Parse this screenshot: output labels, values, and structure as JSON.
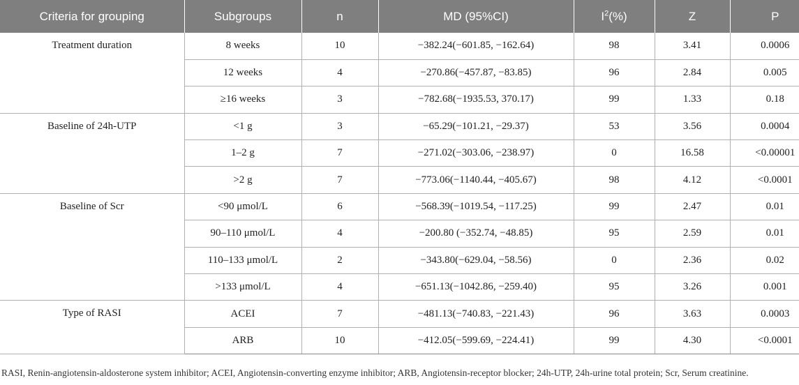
{
  "table": {
    "headers": {
      "criteria": "Criteria for grouping",
      "subgroups": "Subgroups",
      "n": "n",
      "md": "MD (95%CI)",
      "i2_prefix": "I",
      "i2_sup": "2",
      "i2_suffix": "(%)",
      "z": "Z",
      "p": "P"
    },
    "groups": [
      {
        "criteria": "Treatment duration",
        "rows": [
          {
            "subgroup": "8 weeks",
            "n": "10",
            "md": "−382.24(−601.85, −162.64)",
            "i2": "98",
            "z": "3.41",
            "p": "0.0006"
          },
          {
            "subgroup": "12 weeks",
            "n": "4",
            "md": "−270.86(−457.87, −83.85)",
            "i2": "96",
            "z": "2.84",
            "p": "0.005"
          },
          {
            "subgroup": "≥16 weeks",
            "n": "3",
            "md": "−782.68(−1935.53, 370.17)",
            "i2": "99",
            "z": "1.33",
            "p": "0.18"
          }
        ]
      },
      {
        "criteria": "Baseline of 24h-UTP",
        "rows": [
          {
            "subgroup": "<1 g",
            "n": "3",
            "md": "−65.29(−101.21, −29.37)",
            "i2": "53",
            "z": "3.56",
            "p": "0.0004"
          },
          {
            "subgroup": "1–2 g",
            "n": "7",
            "md": "−271.02(−303.06, −238.97)",
            "i2": "0",
            "z": "16.58",
            "p": "<0.00001"
          },
          {
            "subgroup": ">2 g",
            "n": "7",
            "md": "−773.06(−1140.44, −405.67)",
            "i2": "98",
            "z": "4.12",
            "p": "<0.0001"
          }
        ]
      },
      {
        "criteria": "Baseline of Scr",
        "rows": [
          {
            "subgroup": "<90 μmol/L",
            "n": "6",
            "md": "−568.39(−1019.54, −117.25)",
            "i2": "99",
            "z": "2.47",
            "p": "0.01"
          },
          {
            "subgroup": "90–110 μmol/L",
            "n": "4",
            "md": "−200.80 (−352.74, −48.85)",
            "i2": "95",
            "z": "2.59",
            "p": "0.01"
          },
          {
            "subgroup": "110–133 μmol/L",
            "n": "2",
            "md": "−343.80(−629.04, −58.56)",
            "i2": "0",
            "z": "2.36",
            "p": "0.02"
          },
          {
            "subgroup": ">133 μmol/L",
            "n": "4",
            "md": "−651.13(−1042.86, −259.40)",
            "i2": "95",
            "z": "3.26",
            "p": "0.001"
          }
        ]
      },
      {
        "criteria": "Type of RASI",
        "rows": [
          {
            "subgroup": "ACEI",
            "n": "7",
            "md": "−481.13(−740.83, −221.43)",
            "i2": "96",
            "z": "3.63",
            "p": "0.0003"
          },
          {
            "subgroup": "ARB",
            "n": "10",
            "md": "−412.05(−599.69, −224.41)",
            "i2": "99",
            "z": "4.30",
            "p": "<0.0001"
          }
        ]
      }
    ]
  },
  "footnote": "RASI, Renin-angiotensin-aldosterone system inhibitor; ACEI, Angiotensin-converting enzyme inhibitor; ARB, Angiotensin-receptor blocker; 24h-UTP, 24h-urine total protein; Scr, Serum creatinine."
}
